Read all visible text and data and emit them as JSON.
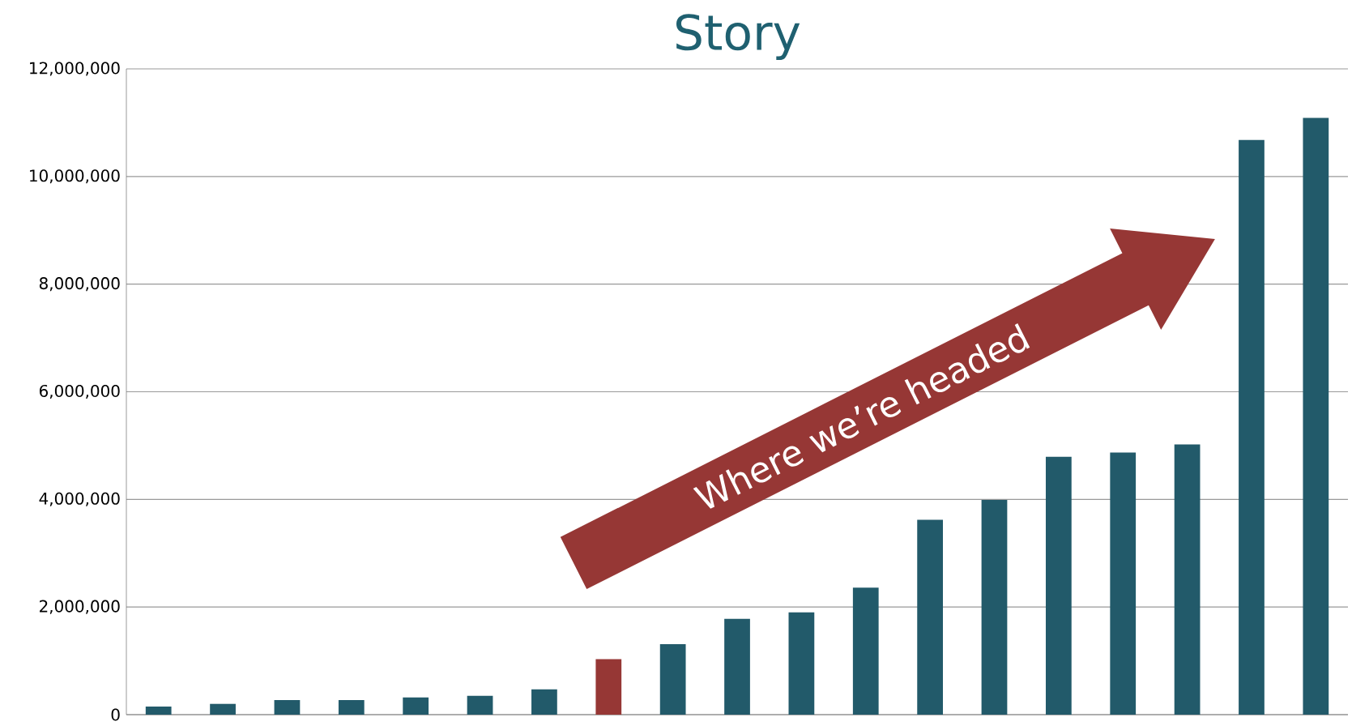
{
  "chart_data": {
    "type": "bar",
    "title": "Story",
    "categories": [
      null,
      null,
      null,
      null,
      null,
      null,
      null,
      null,
      null,
      null,
      null,
      null,
      null,
      null,
      null,
      null,
      null,
      null,
      null
    ],
    "values": [
      150000,
      200000,
      270000,
      270000,
      320000,
      350000,
      470000,
      1030000,
      1310000,
      1780000,
      1900000,
      2360000,
      3620000,
      3990000,
      4790000,
      4870000,
      5020000,
      10680000,
      11090000
    ],
    "colors": [
      "#225a6a",
      "#225a6a",
      "#225a6a",
      "#225a6a",
      "#225a6a",
      "#225a6a",
      "#225a6a",
      "#963735",
      "#225a6a",
      "#225a6a",
      "#225a6a",
      "#225a6a",
      "#225a6a",
      "#225a6a",
      "#225a6a",
      "#225a6a",
      "#225a6a",
      "#225a6a",
      "#225a6a"
    ],
    "ylim": [
      0,
      12000000
    ],
    "yticks": [
      {
        "value": 0,
        "label": "0"
      },
      {
        "value": 2000000,
        "label": "2,000,000"
      },
      {
        "value": 4000000,
        "label": "4,000,000"
      },
      {
        "value": 6000000,
        "label": "6,000,000"
      },
      {
        "value": 8000000,
        "label": "8,000,000"
      },
      {
        "value": 10000000,
        "label": "10,000,000"
      },
      {
        "value": 12000000,
        "label": "12,000,000"
      }
    ],
    "grid": "y",
    "annotations": [
      "Where we’re headed"
    ]
  }
}
